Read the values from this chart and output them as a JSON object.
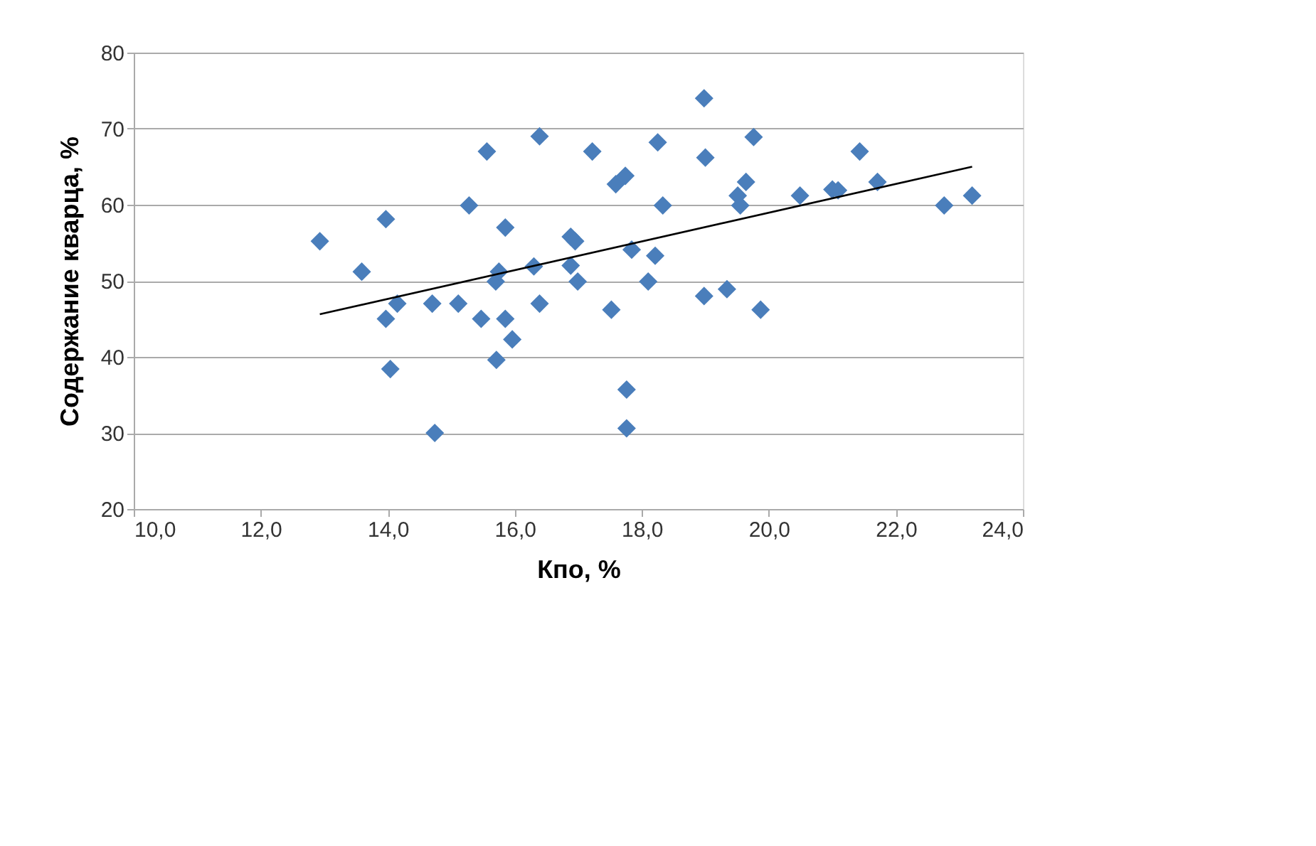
{
  "chart_data": {
    "type": "scatter",
    "xlabel": "Кпо, %",
    "ylabel": "Содержание кварца, %",
    "xlim": [
      10,
      24
    ],
    "xticks": [
      {
        "value": 10,
        "label": "10,0"
      },
      {
        "value": 12,
        "label": "12,0"
      },
      {
        "value": 14,
        "label": "14,0"
      },
      {
        "value": 16,
        "label": "16,0"
      },
      {
        "value": 18,
        "label": "18,0"
      },
      {
        "value": 20,
        "label": "20,0"
      },
      {
        "value": 22,
        "label": "22,0"
      },
      {
        "value": 24,
        "label": "24,0"
      }
    ],
    "ylim": [
      20,
      80
    ],
    "yticks": [
      20,
      30,
      40,
      50,
      60,
      70,
      80
    ],
    "grid": "y",
    "series": [
      {
        "marker": "diamond",
        "color": "#4a7ebb",
        "x": [
          12.93,
          13.59,
          13.97,
          13.97,
          14.04,
          14.15,
          14.7,
          14.74,
          15.11,
          15.28,
          15.47,
          15.56,
          15.7,
          15.75,
          15.71,
          15.85,
          15.85,
          15.96,
          16.3,
          16.39,
          16.39,
          16.88,
          16.95,
          16.88,
          16.99,
          17.22,
          17.52,
          17.59,
          17.74,
          17.76,
          17.76,
          17.84,
          18.1,
          18.21,
          18.25,
          18.33,
          18.98,
          19.0,
          18.98,
          19.34,
          19.51,
          19.55,
          19.64,
          19.76,
          19.87,
          20.49,
          21.0,
          21.09,
          21.43,
          21.71,
          22.76,
          23.2
        ],
        "values": [
          55.2,
          51.2,
          58.1,
          45,
          38.4,
          47,
          47,
          30,
          47,
          59.9,
          45,
          67,
          49.9,
          51.2,
          39.6,
          57,
          45,
          42.3,
          51.9,
          69,
          47,
          55.8,
          55.2,
          52,
          49.9,
          67,
          46.2,
          62.7,
          63.8,
          35.7,
          30.6,
          54.1,
          49.9,
          53.3,
          68.2,
          59.9,
          74,
          66.2,
          48,
          48.9,
          61.2,
          59.9,
          63,
          68.9,
          46.2,
          61.2,
          62,
          61.9,
          67,
          63,
          59.9,
          61.2
        ]
      },
      {
        "type": "line",
        "marker": "none",
        "color": "#000000",
        "x": [
          12.93,
          23.2
        ],
        "values": [
          45.6,
          65.0
        ]
      }
    ]
  }
}
